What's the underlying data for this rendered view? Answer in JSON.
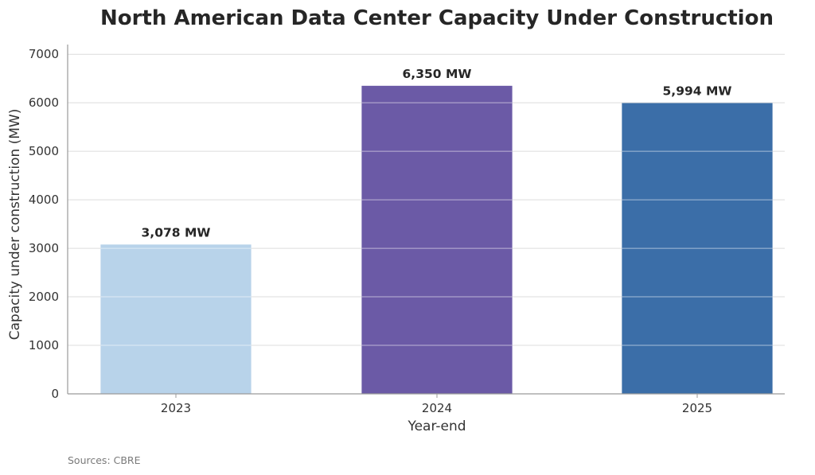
{
  "chart_data": {
    "type": "bar",
    "title": "North American Data Center Capacity Under Construction",
    "xlabel": "Year-end",
    "ylabel": "Capacity under construction (MW)",
    "categories": [
      "2023",
      "2024",
      "2025"
    ],
    "values": [
      3078,
      6350,
      5994
    ],
    "data_labels": [
      "3,078 MW",
      "6,350 MW",
      "5,994 MW"
    ],
    "colors": [
      "#b8d3ea",
      "#6b5aa6",
      "#3b6ea8"
    ],
    "ylim": [
      0,
      7200
    ],
    "yticks": [
      0,
      1000,
      2000,
      3000,
      4000,
      5000,
      6000,
      7000
    ],
    "grid": "horizontal",
    "legend": "none"
  },
  "source_note": "Sources: CBRE"
}
